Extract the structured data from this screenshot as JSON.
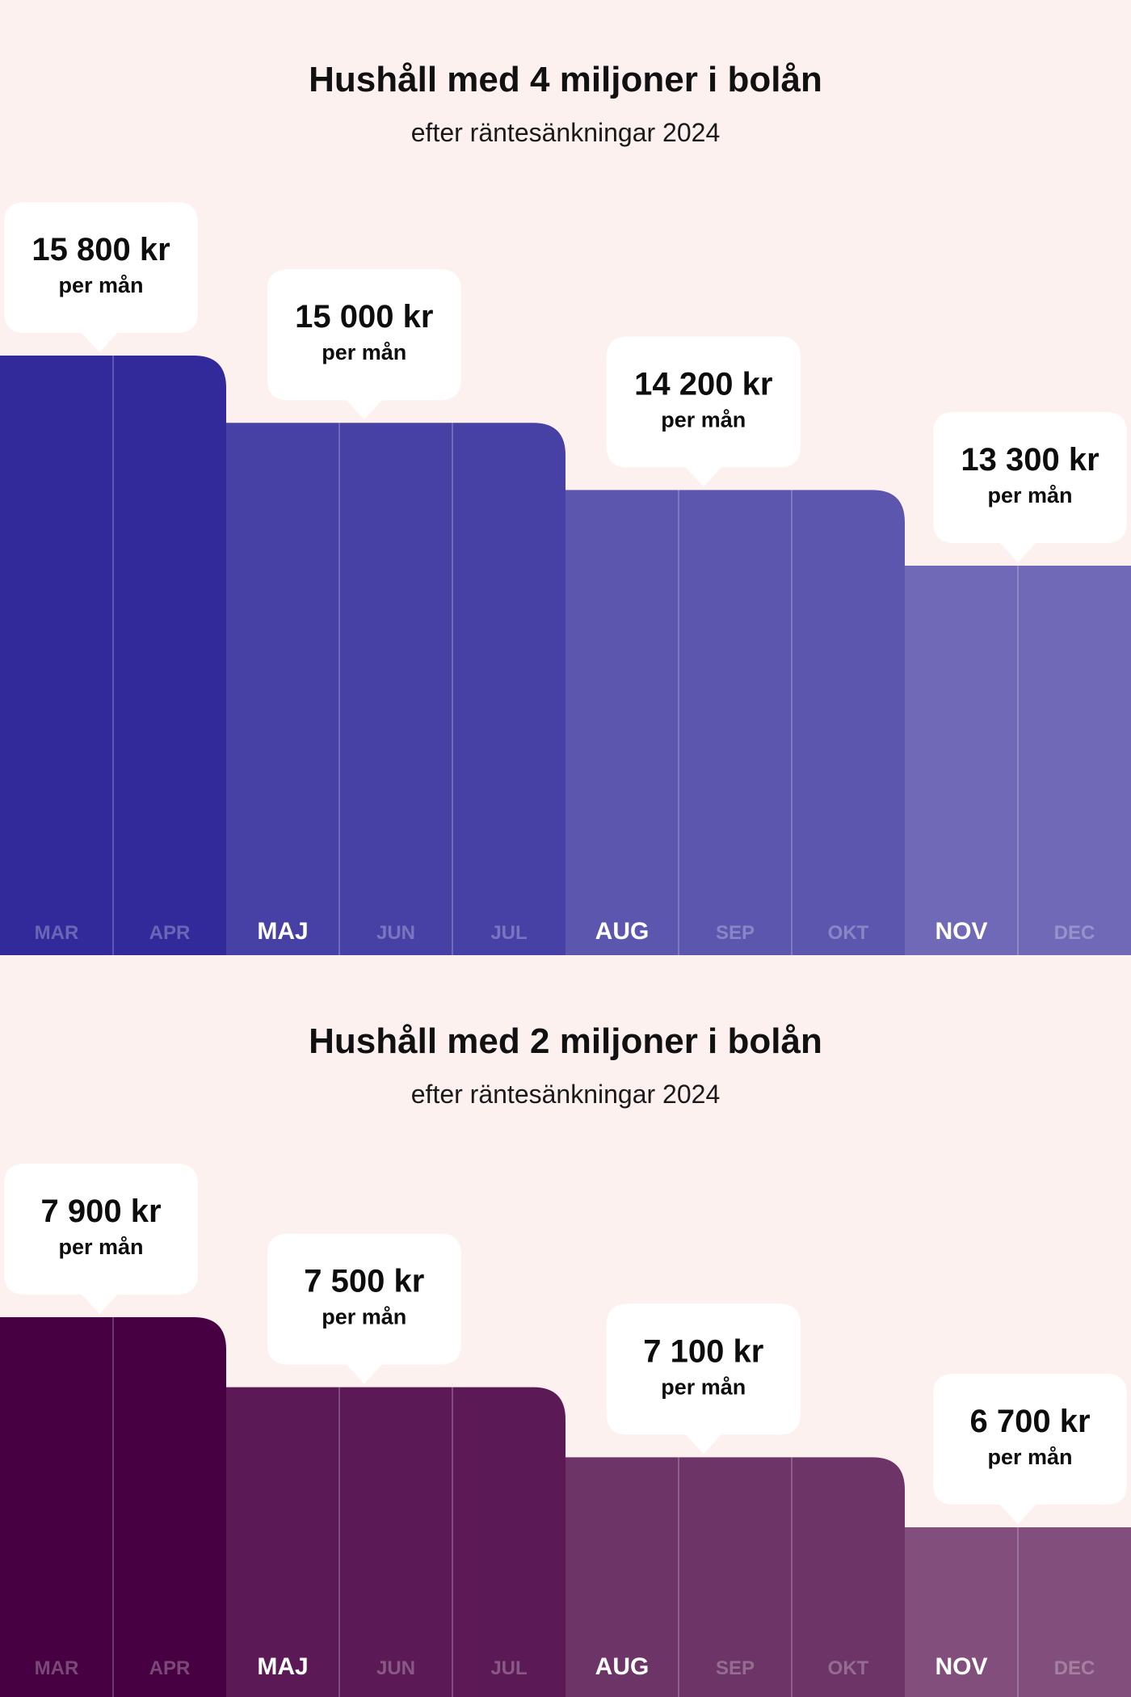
{
  "chart_data": [
    {
      "type": "bar",
      "title": "Hushåll med 4 miljoner i bolån",
      "subtitle": "efter räntesänkningar 2024",
      "categories": [
        "MAR",
        "APR",
        "MAJ",
        "JUN",
        "JUL",
        "AUG",
        "SEP",
        "OKT",
        "NOV",
        "DEC"
      ],
      "values": [
        15800,
        15800,
        15000,
        15000,
        15000,
        14200,
        14200,
        14200,
        13300,
        13300
      ],
      "groups": [
        {
          "value": 15800,
          "label": "15 800 kr",
          "sublabel": "per mån",
          "color": "#322a9a",
          "months": [
            "MAR",
            "APR"
          ]
        },
        {
          "value": 15000,
          "label": "15 000 kr",
          "sublabel": "per mån",
          "color": "#4741a6",
          "months": [
            "MAJ",
            "JUN",
            "JUL"
          ]
        },
        {
          "value": 14200,
          "label": "14 200 kr",
          "sublabel": "per mån",
          "color": "#5d56af",
          "months": [
            "AUG",
            "SEP",
            "OKT"
          ]
        },
        {
          "value": 13300,
          "label": "13 300 kr",
          "sublabel": "per mån",
          "color": "#7069b8",
          "months": [
            "NOV",
            "DEC"
          ]
        }
      ],
      "highlighted": [
        "MAJ",
        "AUG",
        "NOV"
      ]
    },
    {
      "type": "bar",
      "title": "Hushåll med 2 miljoner i bolån",
      "subtitle": "efter räntesänkningar 2024",
      "categories": [
        "MAR",
        "APR",
        "MAJ",
        "JUN",
        "JUL",
        "AUG",
        "SEP",
        "OKT",
        "NOV",
        "DEC"
      ],
      "values": [
        7900,
        7900,
        7500,
        7500,
        7500,
        7100,
        7100,
        7100,
        6700,
        6700
      ],
      "groups": [
        {
          "value": 7900,
          "label": "7 900 kr",
          "sublabel": "per mån",
          "color": "#470042",
          "months": [
            "MAR",
            "APR"
          ]
        },
        {
          "value": 7500,
          "label": "7 500 kr",
          "sublabel": "per mån",
          "color": "#5b1a56",
          "months": [
            "MAJ",
            "JUN",
            "JUL"
          ]
        },
        {
          "value": 7100,
          "label": "7 100 kr",
          "sublabel": "per mån",
          "color": "#6d3467",
          "months": [
            "AUG",
            "SEP",
            "OKT"
          ]
        },
        {
          "value": 6700,
          "label": "6 700 kr",
          "sublabel": "per mån",
          "color": "#824e7c",
          "months": [
            "NOV",
            "DEC"
          ]
        }
      ],
      "highlighted": [
        "MAJ",
        "AUG",
        "NOV"
      ]
    }
  ]
}
